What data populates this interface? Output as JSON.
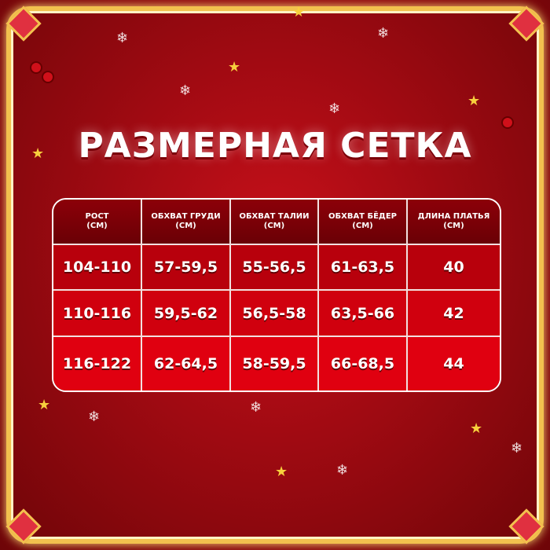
{
  "title": "РАЗМЕРНАЯ СЕТКА",
  "table": {
    "headers": [
      {
        "line1": "РОСТ",
        "line2": "(СМ)"
      },
      {
        "line1": "ОБХВАТ ГРУДИ",
        "line2": "(СМ)"
      },
      {
        "line1": "ОБХВАТ ТАЛИИ",
        "line2": "(СМ)"
      },
      {
        "line1": "ОБХВАТ БЁДЕР",
        "line2": "(СМ)"
      },
      {
        "line1": "ДЛИНА ПЛАТЬЯ",
        "line2": "(СМ)"
      }
    ],
    "rows": [
      [
        "104-110",
        "57-59,5",
        "55-56,5",
        "61-63,5",
        "40"
      ],
      [
        "110-116",
        "59,5-62",
        "56,5-58",
        "63,5-66",
        "42"
      ],
      [
        "116-122",
        "62-64,5",
        "58-59,5",
        "66-68,5",
        "44"
      ]
    ]
  },
  "colors": {
    "background": "#b0000c",
    "frame": "#f2c14e",
    "text": "#ffffff"
  }
}
